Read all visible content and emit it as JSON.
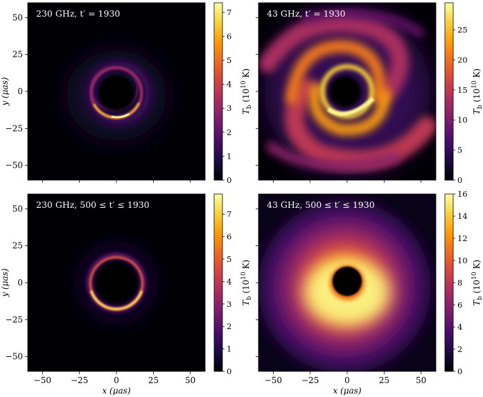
{
  "chart_data": [
    {
      "type": "heatmap",
      "title": "230 GHz, t′ = 1930",
      "xlabel": "",
      "ylabel": "y (μas)",
      "colorbar_label": "T_b (10^10 K)",
      "xlim": [
        -60,
        60
      ],
      "ylim": [
        -60,
        60
      ],
      "xticks": [
        -50,
        -25,
        0,
        25,
        50
      ],
      "yticks": [
        50,
        25,
        0,
        -25,
        -50
      ],
      "yticklabels": [
        "50",
        "25",
        "0",
        "−25",
        "−50"
      ],
      "cbar_range": [
        0,
        7.4
      ],
      "cbar_ticks": [
        0,
        1,
        2,
        3,
        4,
        5,
        6,
        7
      ],
      "image": {
        "kind": "thin_ring_snapshot",
        "ring_radius": 17,
        "peak": 7.4
      }
    },
    {
      "type": "heatmap",
      "title": "43 GHz, t′ = 1930",
      "xlabel": "",
      "ylabel": "",
      "colorbar_label": "T_b (10^10 K)",
      "xlim": [
        -60,
        60
      ],
      "ylim": [
        -60,
        60
      ],
      "xticks": [
        -50,
        -25,
        0,
        25,
        50
      ],
      "yticks": [
        50,
        25,
        0,
        -25,
        -50
      ],
      "cbar_range": [
        0,
        29.5
      ],
      "cbar_ticks": [
        0,
        5,
        10,
        15,
        20,
        25
      ],
      "image": {
        "kind": "spiral_snapshot",
        "shadow_radius": 8,
        "peak": 29.5
      }
    },
    {
      "type": "heatmap",
      "title": "230 GHz, 500 ≤ t′ ≤ 1930",
      "xlabel": "x (μas)",
      "ylabel": "y (μas)",
      "colorbar_label": "T_b (10^10 K)",
      "xlim": [
        -60,
        60
      ],
      "ylim": [
        -60,
        60
      ],
      "xticks": [
        -50,
        -25,
        0,
        25,
        50
      ],
      "xticklabels": [
        "−50",
        "−25",
        "0",
        "25",
        "50"
      ],
      "yticks": [
        50,
        25,
        0,
        -25,
        -50
      ],
      "yticklabels": [
        "50",
        "25",
        "0",
        "−25",
        "−50"
      ],
      "cbar_range": [
        0,
        7.9
      ],
      "cbar_ticks": [
        0,
        1,
        2,
        3,
        4,
        5,
        6,
        7
      ],
      "image": {
        "kind": "thin_ring_average",
        "ring_radius": 18,
        "peak": 7.9
      }
    },
    {
      "type": "heatmap",
      "title": "43 GHz, 500 ≤ t′ ≤ 1930",
      "xlabel": "x (μas)",
      "ylabel": "",
      "colorbar_label": "T_b (10^10 K)",
      "xlim": [
        -60,
        60
      ],
      "ylim": [
        -60,
        60
      ],
      "xticks": [
        -50,
        -25,
        0,
        25,
        50
      ],
      "xticklabels": [
        "−50",
        "−25",
        "0",
        "25",
        "50"
      ],
      "yticks": [
        50,
        25,
        0,
        -25,
        -50
      ],
      "cbar_range": [
        0,
        16
      ],
      "cbar_ticks": [
        0,
        2,
        4,
        6,
        8,
        10,
        12,
        14,
        16
      ],
      "image": {
        "kind": "diffuse_average",
        "shadow_radius": 8,
        "peak": 16
      }
    }
  ],
  "colormap": {
    "name": "inferno",
    "stops": [
      "#000004",
      "#1b0c41",
      "#4a0c6b",
      "#781c6d",
      "#a52c60",
      "#cf4446",
      "#ed6925",
      "#fb9b06",
      "#f7d13d",
      "#fcffa4"
    ]
  },
  "axis_color": "#000000"
}
